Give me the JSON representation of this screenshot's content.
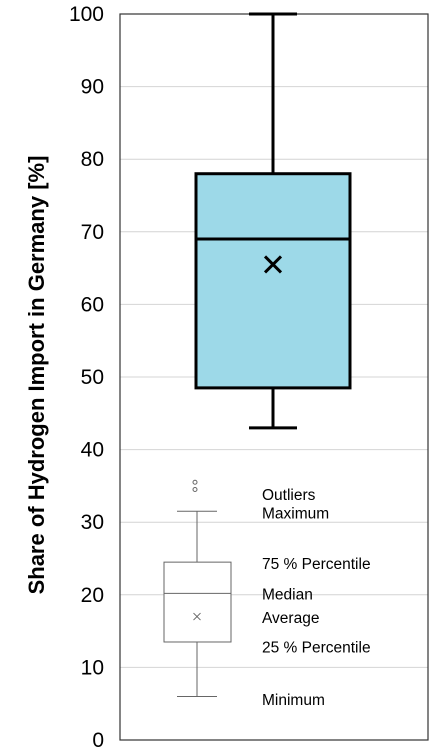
{
  "chart_data": {
    "type": "box",
    "ylabel": "Share of Hydrogen Import in Germany [%]",
    "ylim": [
      0,
      100
    ],
    "y_ticks": [
      0,
      10,
      20,
      30,
      40,
      50,
      60,
      70,
      80,
      90,
      100
    ],
    "grid": true,
    "box": {
      "minimum": 43,
      "q1": 48.5,
      "median": 69,
      "q3": 78,
      "maximum": 100,
      "average": 65.5,
      "fill_color": "#9dd9e8",
      "line_color": "#000000"
    },
    "legend": {
      "placement": "bottom",
      "example": {
        "outliers": [
          35.5,
          34.5
        ],
        "maximum": 31.5,
        "q3": 24.5,
        "median": 20.2,
        "average": 17,
        "q1": 13.5,
        "minimum": 6
      },
      "labels": [
        {
          "key": "outliers",
          "text": "Outliers",
          "y": 33.8
        },
        {
          "key": "maximum",
          "text": "Maximum",
          "y": 31.3
        },
        {
          "key": "q3",
          "text": "75 % Percentile",
          "y": 24.3
        },
        {
          "key": "median",
          "text": "Median",
          "y": 20.1
        },
        {
          "key": "average",
          "text": "Average",
          "y": 16.9
        },
        {
          "key": "q1",
          "text": "25 % Percentile",
          "y": 12.8
        },
        {
          "key": "minimum",
          "text": "Minimum",
          "y": 5.6
        }
      ]
    }
  }
}
